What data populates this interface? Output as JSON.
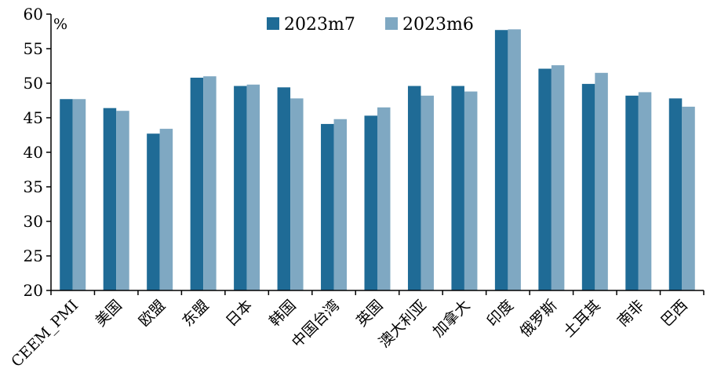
{
  "chart_data": {
    "type": "bar",
    "ylabel": "%",
    "ylim": [
      20,
      60
    ],
    "ytick_step": 5,
    "yticks": [
      "20",
      "25",
      "30",
      "35",
      "40",
      "45",
      "50",
      "55",
      "60"
    ],
    "grid": false,
    "legend_position": "top-center",
    "categories": [
      "CEEM_PMI",
      "美国",
      "欧盟",
      "东盟",
      "日本",
      "韩国",
      "中国台湾",
      "英国",
      "澳大利亚",
      "加拿大",
      "印度",
      "俄罗斯",
      "土耳其",
      "南非",
      "巴西"
    ],
    "series": [
      {
        "name": "2023m7",
        "color": "#1f6b96",
        "values": [
          47.7,
          46.4,
          42.7,
          50.8,
          49.6,
          49.4,
          44.1,
          45.3,
          49.6,
          49.6,
          57.7,
          52.1,
          49.9,
          48.2,
          47.8
        ]
      },
      {
        "name": "2023m6",
        "color": "#7fa8c2",
        "values": [
          47.7,
          46.0,
          43.4,
          51.0,
          49.8,
          47.8,
          44.8,
          46.5,
          48.2,
          48.8,
          57.8,
          52.6,
          51.5,
          48.7,
          46.6
        ]
      }
    ]
  }
}
